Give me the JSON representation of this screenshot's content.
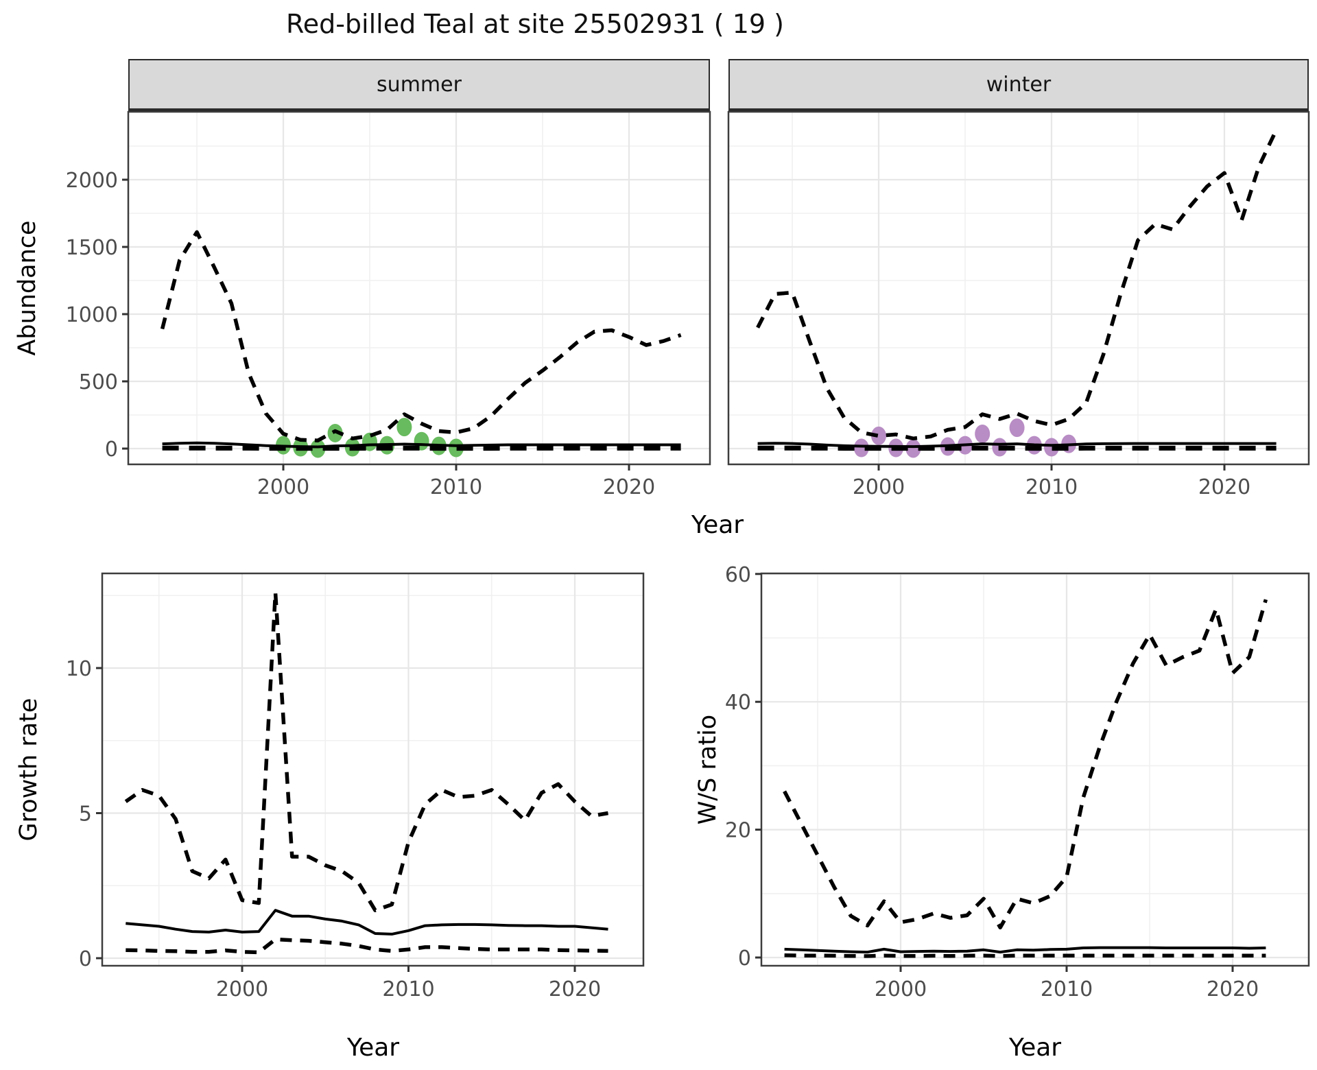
{
  "title": "Red-billed Teal at site 25502931 ( 19 )",
  "facets": {
    "summer": "summer",
    "winter": "winter"
  },
  "axis_labels": {
    "x": "Year",
    "y_top": "Abundance",
    "y_growth": "Growth rate",
    "y_ws": "W/S ratio"
  },
  "colors": {
    "summer_points": "#68bb5e",
    "winter_points": "#b88cc4",
    "line": "#000000",
    "strip_bg": "#d9d9d9",
    "tick_text": "#4d4d4d",
    "grid_major": "#e7e7e7",
    "grid_minor": "#f0f0f0",
    "panel_border": "#3d3d3d"
  },
  "chart_data": [
    {
      "type": "line",
      "facet": "summer",
      "xlabel": "Year",
      "ylabel": "Abundance",
      "xticks": [
        2000,
        2010,
        2020
      ],
      "yticks": [
        0,
        500,
        1000,
        1500,
        2000
      ],
      "ylim": [
        0,
        2450
      ],
      "x": [
        1993,
        1994,
        1995,
        1996,
        1997,
        1998,
        1999,
        2000,
        2001,
        2002,
        2003,
        2004,
        2005,
        2006,
        2007,
        2008,
        2009,
        2010,
        2011,
        2012,
        2013,
        2014,
        2015,
        2016,
        2017,
        2018,
        2019,
        2020,
        2021,
        2022,
        2023
      ],
      "series": [
        {
          "name": "upper_ci",
          "style": "dashed",
          "values": [
            890,
            1400,
            1610,
            1350,
            1080,
            560,
            260,
            110,
            65,
            60,
            130,
            75,
            95,
            140,
            255,
            185,
            130,
            120,
            150,
            240,
            370,
            490,
            580,
            680,
            790,
            870,
            880,
            830,
            770,
            800,
            845
          ]
        },
        {
          "name": "mean",
          "style": "solid",
          "values": [
            35,
            40,
            42,
            40,
            34,
            28,
            22,
            18,
            15,
            13,
            20,
            22,
            28,
            30,
            33,
            30,
            25,
            22,
            24,
            26,
            28,
            28,
            28,
            28,
            28,
            28,
            28,
            28,
            28,
            28,
            28
          ]
        },
        {
          "name": "lower_ci",
          "style": "dashed_heavy",
          "values": [
            4,
            4,
            4,
            3,
            3,
            3,
            2,
            2,
            2,
            2,
            2,
            2,
            3,
            3,
            3,
            3,
            2,
            2,
            2,
            2,
            3,
            3,
            3,
            3,
            3,
            3,
            3,
            3,
            3,
            3,
            3
          ]
        }
      ],
      "points": {
        "name": "observed_counts_summer",
        "color": "#68bb5e",
        "data": [
          [
            2000,
            25
          ],
          [
            2001,
            10
          ],
          [
            2002,
            0
          ],
          [
            2003,
            115
          ],
          [
            2004,
            10
          ],
          [
            2005,
            50
          ],
          [
            2006,
            25
          ],
          [
            2007,
            160
          ],
          [
            2008,
            55
          ],
          [
            2009,
            20
          ],
          [
            2010,
            5
          ]
        ]
      }
    },
    {
      "type": "line",
      "facet": "winter",
      "xlabel": "Year",
      "ylabel": "Abundance",
      "xticks": [
        2000,
        2010,
        2020
      ],
      "yticks": [
        0,
        500,
        1000,
        1500,
        2000
      ],
      "ylim": [
        0,
        2450
      ],
      "x": [
        1993,
        1994,
        1995,
        1996,
        1997,
        1998,
        1999,
        2000,
        2001,
        2002,
        2003,
        2004,
        2005,
        2006,
        2007,
        2008,
        2009,
        2010,
        2011,
        2012,
        2013,
        2014,
        2015,
        2016,
        2017,
        2018,
        2019,
        2020,
        2021,
        2022,
        2023
      ],
      "series": [
        {
          "name": "upper_ci",
          "style": "dashed",
          "values": [
            900,
            1150,
            1160,
            800,
            450,
            230,
            120,
            95,
            105,
            75,
            90,
            140,
            160,
            255,
            220,
            260,
            205,
            175,
            220,
            340,
            700,
            1150,
            1550,
            1670,
            1630,
            1800,
            1950,
            2050,
            1700,
            2100,
            2370
          ]
        },
        {
          "name": "mean",
          "style": "solid",
          "values": [
            38,
            40,
            38,
            33,
            26,
            21,
            18,
            17,
            16,
            15,
            18,
            22,
            28,
            35,
            32,
            35,
            28,
            24,
            28,
            34,
            36,
            37,
            38,
            38,
            38,
            38,
            38,
            38,
            38,
            38,
            38
          ]
        },
        {
          "name": "lower_ci",
          "style": "dashed_heavy",
          "values": [
            4,
            4,
            4,
            3,
            3,
            2,
            2,
            2,
            2,
            2,
            2,
            2,
            3,
            3,
            3,
            3,
            2,
            2,
            2,
            3,
            3,
            3,
            3,
            3,
            3,
            3,
            3,
            3,
            3,
            3,
            3
          ]
        }
      ],
      "points": {
        "name": "observed_counts_winter",
        "color": "#b88cc4",
        "data": [
          [
            1999,
            5
          ],
          [
            2000,
            95
          ],
          [
            2001,
            5
          ],
          [
            2002,
            0
          ],
          [
            2004,
            15
          ],
          [
            2005,
            25
          ],
          [
            2006,
            110
          ],
          [
            2007,
            10
          ],
          [
            2008,
            155
          ],
          [
            2009,
            25
          ],
          [
            2010,
            10
          ],
          [
            2011,
            35
          ]
        ]
      }
    },
    {
      "type": "line",
      "facet": null,
      "xlabel": "Year",
      "ylabel": "Growth rate",
      "xticks": [
        2000,
        2010,
        2020
      ],
      "yticks": [
        0,
        5,
        10
      ],
      "ylim": [
        0,
        13.2
      ],
      "x": [
        1993,
        1994,
        1995,
        1996,
        1997,
        1998,
        1999,
        2000,
        2001,
        2002,
        2003,
        2004,
        2005,
        2006,
        2007,
        2008,
        2009,
        2010,
        2011,
        2012,
        2013,
        2014,
        2015,
        2016,
        2017,
        2018,
        2019,
        2020,
        2021,
        2022
      ],
      "series": [
        {
          "name": "upper_ci",
          "style": "dashed",
          "values": [
            5.4,
            5.8,
            5.6,
            4.8,
            3.0,
            2.75,
            3.4,
            2.0,
            1.9,
            12.6,
            3.5,
            3.5,
            3.2,
            3.0,
            2.6,
            1.65,
            1.85,
            4.0,
            5.3,
            5.8,
            5.55,
            5.6,
            5.8,
            5.3,
            4.75,
            5.7,
            6.0,
            5.4,
            4.9,
            5.0
          ]
        },
        {
          "name": "mean",
          "style": "solid",
          "values": [
            1.2,
            1.15,
            1.1,
            1.0,
            0.92,
            0.9,
            0.97,
            0.9,
            0.92,
            1.65,
            1.45,
            1.45,
            1.35,
            1.28,
            1.15,
            0.85,
            0.83,
            0.95,
            1.12,
            1.15,
            1.16,
            1.16,
            1.15,
            1.13,
            1.12,
            1.12,
            1.1,
            1.1,
            1.05,
            1.0
          ]
        },
        {
          "name": "lower_ci",
          "style": "dashed",
          "values": [
            0.28,
            0.27,
            0.25,
            0.24,
            0.22,
            0.22,
            0.27,
            0.22,
            0.2,
            0.65,
            0.62,
            0.6,
            0.55,
            0.5,
            0.42,
            0.3,
            0.25,
            0.3,
            0.38,
            0.38,
            0.35,
            0.32,
            0.3,
            0.3,
            0.3,
            0.3,
            0.28,
            0.27,
            0.26,
            0.25
          ]
        }
      ],
      "points": null
    },
    {
      "type": "line",
      "facet": null,
      "xlabel": "Year",
      "ylabel": "W/S ratio",
      "xticks": [
        2000,
        2010,
        2020
      ],
      "yticks": [
        0,
        20,
        40,
        60
      ],
      "ylim": [
        0,
        60
      ],
      "x": [
        1993,
        1994,
        1995,
        1996,
        1997,
        1998,
        1999,
        2000,
        2001,
        2002,
        2003,
        2004,
        2005,
        2006,
        2007,
        2008,
        2009,
        2010,
        2011,
        2012,
        2013,
        2014,
        2015,
        2016,
        2017,
        2018,
        2019,
        2020,
        2021,
        2022
      ],
      "series": [
        {
          "name": "upper_ci",
          "style": "dashed",
          "values": [
            26,
            21,
            16,
            11,
            6.5,
            5,
            8.8,
            5.5,
            6,
            6.9,
            6.2,
            6.6,
            9.2,
            4.7,
            9.2,
            8.5,
            9.6,
            12.6,
            25,
            33,
            40,
            46,
            50.5,
            45.7,
            47,
            48,
            54.5,
            44.5,
            47,
            56
          ]
        },
        {
          "name": "mean",
          "style": "solid",
          "values": [
            1.3,
            1.2,
            1.1,
            1.0,
            0.9,
            0.85,
            1.3,
            0.9,
            0.95,
            1.0,
            0.95,
            1.0,
            1.2,
            0.85,
            1.2,
            1.15,
            1.25,
            1.3,
            1.5,
            1.55,
            1.55,
            1.55,
            1.55,
            1.5,
            1.5,
            1.5,
            1.5,
            1.5,
            1.45,
            1.5
          ]
        },
        {
          "name": "lower_ci",
          "style": "dashed",
          "values": [
            0.35,
            0.3,
            0.3,
            0.28,
            0.25,
            0.22,
            0.3,
            0.25,
            0.25,
            0.28,
            0.25,
            0.28,
            0.3,
            0.22,
            0.3,
            0.3,
            0.3,
            0.3,
            0.3,
            0.3,
            0.3,
            0.3,
            0.3,
            0.3,
            0.3,
            0.3,
            0.3,
            0.3,
            0.3,
            0.3
          ]
        }
      ],
      "points": null
    }
  ]
}
